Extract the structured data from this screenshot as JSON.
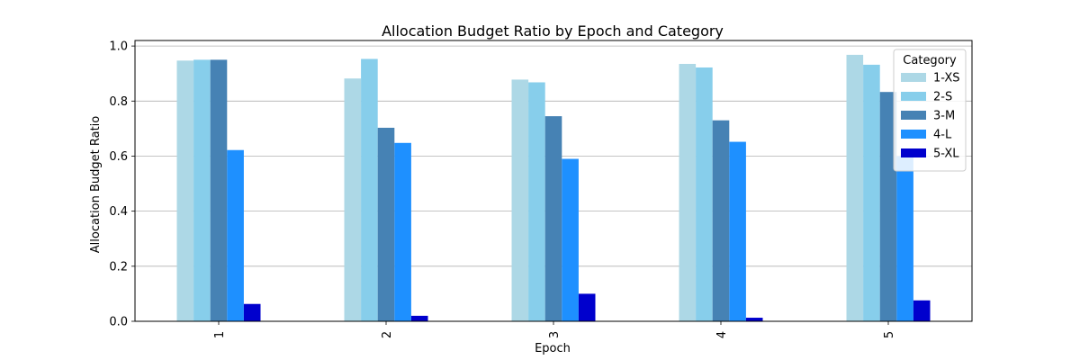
{
  "chart_data": {
    "type": "bar",
    "title": "Allocation Budget Ratio by Epoch and Category",
    "xlabel": "Epoch",
    "ylabel": "Allocation Budget Ratio",
    "categories": [
      "1",
      "2",
      "3",
      "4",
      "5"
    ],
    "ylim": [
      0,
      1.02
    ],
    "yticks": [
      "0.0",
      "0.2",
      "0.4",
      "0.6",
      "0.8",
      "1.0"
    ],
    "grid": "y",
    "legend": {
      "title": "Category",
      "placement": "top-right"
    },
    "series": [
      {
        "name": "1-XS",
        "color": "#add8e6",
        "values": [
          0.947,
          0.882,
          0.878,
          0.935,
          0.968
        ]
      },
      {
        "name": "2-S",
        "color": "#87ceeb",
        "values": [
          0.95,
          0.953,
          0.868,
          0.922,
          0.932
        ]
      },
      {
        "name": "3-M",
        "color": "#4682b4",
        "values": [
          0.95,
          0.703,
          0.745,
          0.73,
          0.833
        ]
      },
      {
        "name": "4-L",
        "color": "#1e90ff",
        "values": [
          0.622,
          0.648,
          0.59,
          0.652,
          0.6
        ]
      },
      {
        "name": "5-XL",
        "color": "#0000cd",
        "values": [
          0.063,
          0.02,
          0.1,
          0.013,
          0.076
        ]
      }
    ]
  }
}
